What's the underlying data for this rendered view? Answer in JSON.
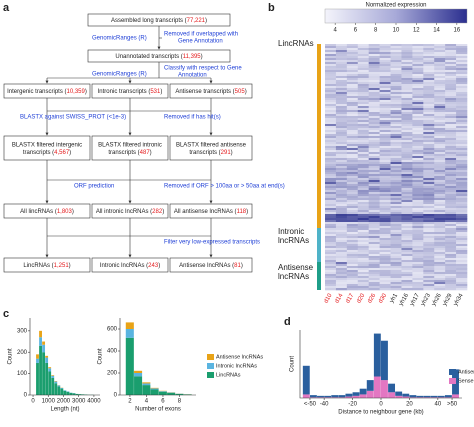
{
  "labels": {
    "a": "a",
    "b": "b",
    "c": "c",
    "d": "d"
  },
  "flowchart": {
    "nodes": [
      {
        "lines": [
          [
            "Assembled long transcripts (",
            "77,221",
            ")"
          ]
        ]
      },
      {
        "lines": [
          [
            "Unannotated transcripts (",
            "11,395",
            ")"
          ]
        ]
      },
      {
        "lines": [
          [
            "Intergenic transcripts (",
            "10,359",
            ")"
          ]
        ]
      },
      {
        "lines": [
          [
            "Intronic transcripts (",
            "531",
            ")"
          ]
        ]
      },
      {
        "lines": [
          [
            "Antisense transcripts (",
            "505",
            ")"
          ]
        ]
      },
      {
        "lines": [
          [
            "BLASTX filtered intergenic"
          ],
          [
            "transcripts (",
            "4,567",
            ")"
          ]
        ]
      },
      {
        "lines": [
          [
            "BLASTX filtered intronic"
          ],
          [
            "transcripts (",
            "487",
            ")"
          ]
        ]
      },
      {
        "lines": [
          [
            "BLASTX filtered antisense"
          ],
          [
            "transcripts (",
            "291",
            ")"
          ]
        ]
      },
      {
        "lines": [
          [
            "All lincRNAs (",
            "1,803",
            ")"
          ]
        ]
      },
      {
        "lines": [
          [
            "All intronic lncRNAs (",
            "282",
            ")"
          ]
        ]
      },
      {
        "lines": [
          [
            "All antisense lncRNAs (",
            "118",
            ")"
          ]
        ]
      },
      {
        "lines": [
          [
            "LincRNAs (",
            "1,251",
            ")"
          ]
        ]
      },
      {
        "lines": [
          [
            "Intronic lncRNAs (",
            "243",
            ")"
          ]
        ]
      },
      {
        "lines": [
          [
            "Antisense lncRNAs (",
            "81",
            ")"
          ]
        ]
      }
    ],
    "notes": [
      "GenomicRanges (R)",
      "Removed if overlapped with",
      "Gene Annotation",
      "GenomicRanges (R)",
      "Classify with respect to Gene",
      "Annotation",
      "BLASTX against SWISS_PROT (<1e-3)",
      "Removed if has hit(s)",
      "ORF prediction",
      "Removed if ORF > 100aa or > 50aa at end(s)",
      "Filter very low-expressed transcripts"
    ],
    "count_color": "#e41a1c",
    "note_color": "#1f3fd6"
  },
  "heatmap": {
    "colorbar_title": "Normalized expression",
    "lim": [
      3,
      17
    ],
    "ticks": [
      4,
      6,
      8,
      10,
      12,
      14,
      16
    ],
    "groups": [
      {
        "lines": [
          "LincRNAs"
        ],
        "color": "#e8a317"
      },
      {
        "lines": [
          "Intronic",
          "lncRNAs"
        ],
        "color": "#4fb3c8"
      },
      {
        "lines": [
          "Antisense",
          "lncRNAs"
        ],
        "color": "#1f9e89"
      }
    ],
    "columns": [
      {
        "label": "d10",
        "color": "#e41a1c"
      },
      {
        "label": "d14",
        "color": "#e41a1c"
      },
      {
        "label": "d17",
        "color": "#e41a1c"
      },
      {
        "label": "d20",
        "color": "#e41a1c"
      },
      {
        "label": "d26",
        "color": "#e41a1c"
      },
      {
        "label": "d30",
        "color": "#e41a1c"
      },
      {
        "label": "yh1",
        "color": "#222222"
      },
      {
        "label": "yh16",
        "color": "#222222"
      },
      {
        "label": "yh17",
        "color": "#222222"
      },
      {
        "label": "yh23",
        "color": "#222222"
      },
      {
        "label": "yh26",
        "color": "#222222"
      },
      {
        "label": "yh29",
        "color": "#222222"
      },
      {
        "label": "yh34",
        "color": "#222222"
      }
    ]
  },
  "chart_data": [
    {
      "type": "histogram",
      "xlabel": "Length (nt)",
      "ylabel": "Count",
      "bins": [
        0,
        200,
        400,
        600,
        800,
        1000,
        1200,
        1400,
        1600,
        1800,
        2000,
        2200,
        2400,
        2600,
        2800,
        3000,
        3200,
        3400,
        3600,
        3800,
        4000
      ],
      "series": [
        {
          "color": "#1a9e6e",
          "values": [
            0,
            150,
            230,
            200,
            150,
            110,
            80,
            55,
            40,
            30,
            20,
            15,
            10,
            8,
            5,
            4,
            3,
            2,
            1,
            1
          ]
        },
        {
          "color": "#5ab4e0",
          "values": [
            0,
            20,
            40,
            35,
            25,
            15,
            10,
            8,
            5,
            3,
            2,
            2,
            1,
            1,
            0,
            0,
            0,
            0,
            0,
            0
          ]
        },
        {
          "color": "#e8a317",
          "values": [
            0,
            20,
            30,
            15,
            8,
            5,
            3,
            2,
            1,
            1,
            0,
            0,
            0,
            0,
            0,
            0,
            0,
            0,
            0,
            0
          ]
        }
      ],
      "xlim": [
        -200,
        4400
      ],
      "xticks": [
        0,
        1000,
        2000,
        3000,
        4000
      ],
      "ylim": [
        0,
        360
      ],
      "yticks": [
        0,
        100,
        200,
        300
      ],
      "legend": false
    },
    {
      "type": "histogram",
      "xlabel": "Number of exons",
      "ylabel": "Count",
      "bins": [
        1.5,
        2.5,
        3.5,
        4.5,
        5.5,
        6.5,
        7.5,
        8.5,
        9.5
      ],
      "series": [
        {
          "name": "LincRNAs",
          "color": "#1a9e6e",
          "values": [
            520,
            170,
            90,
            50,
            30,
            20,
            10,
            5
          ]
        },
        {
          "name": "Intronic lncRNAs",
          "color": "#5ab4e0",
          "values": [
            80,
            30,
            15,
            10,
            5,
            3,
            2,
            1
          ]
        },
        {
          "name": "Antisense lncRNAs",
          "color": "#e8a317",
          "values": [
            60,
            20,
            10,
            5,
            3,
            2,
            1,
            1
          ]
        }
      ],
      "xlim": [
        0.8,
        10
      ],
      "xticks": [
        2,
        4,
        6,
        8
      ],
      "ylim": [
        0,
        700
      ],
      "yticks": [
        0,
        200,
        400,
        600
      ],
      "legend": true
    },
    {
      "type": "histogram",
      "xlabel": "Distance to neighbour gene (kb)",
      "ylabel": "Count",
      "bins": [
        -55,
        -50,
        -45,
        -40,
        -35,
        -30,
        -25,
        -20,
        -15,
        -10,
        -5,
        0,
        5,
        10,
        15,
        20,
        25,
        30,
        35,
        40,
        45,
        50,
        55
      ],
      "series": [
        {
          "name": "Sense",
          "color": "#e377c2",
          "values": [
            5,
            1,
            1,
            1,
            1,
            1,
            2,
            3,
            5,
            10,
            30,
            25,
            8,
            3,
            2,
            1,
            1,
            1,
            1,
            1,
            1,
            5
          ]
        },
        {
          "name": "Antisense",
          "color": "#2a5f9e",
          "values": [
            40,
            3,
            2,
            2,
            3,
            3,
            4,
            5,
            8,
            15,
            60,
            55,
            12,
            6,
            4,
            3,
            2,
            2,
            2,
            2,
            3,
            35
          ]
        }
      ],
      "xlim": [
        -57,
        57
      ],
      "xticks": [
        {
          "value": -50,
          "label": "<-50"
        },
        -40,
        -20,
        0,
        20,
        40,
        {
          "value": 50,
          "label": ">50"
        }
      ],
      "ylim": [
        0,
        95
      ],
      "yticks": [],
      "legend": true
    }
  ]
}
